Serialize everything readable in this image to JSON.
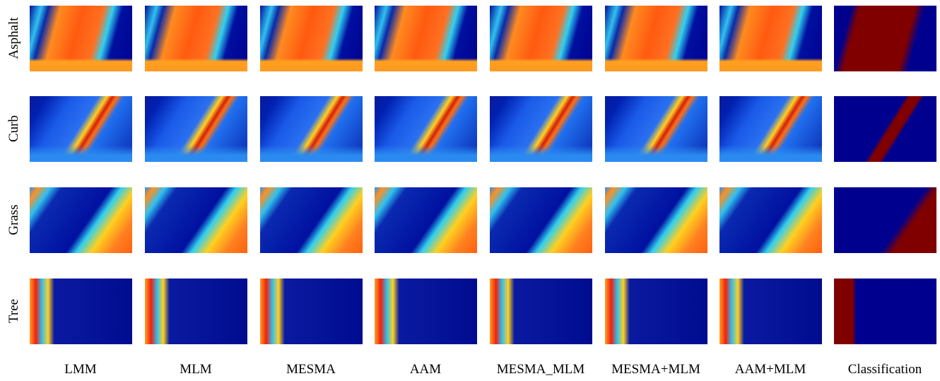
{
  "row_labels": [
    "Asphalt",
    "Curb",
    "Grass",
    "Tree"
  ],
  "column_labels": [
    "LMM",
    "MLM",
    "MESMA",
    "AAM",
    "MESMA_MLM",
    "MESMA+MLM",
    "AAM+MLM",
    "Classification"
  ]
}
